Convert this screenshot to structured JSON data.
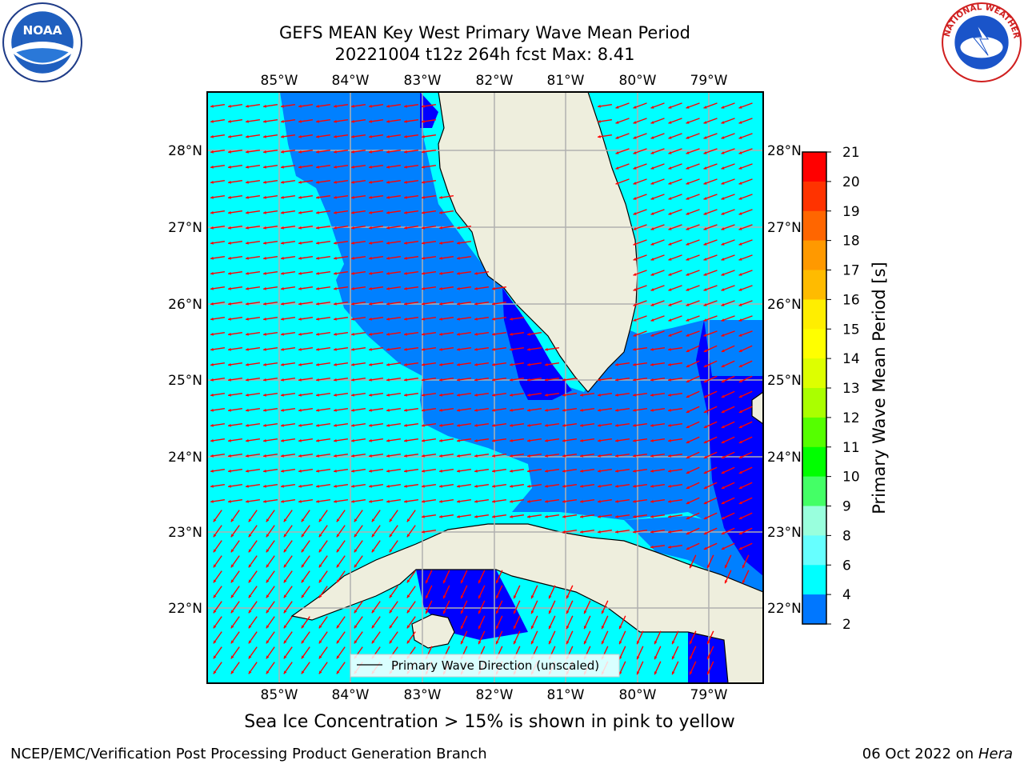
{
  "title": {
    "line1": "GEFS MEAN Key West Primary Wave Mean Period",
    "line2": "20221004 t12z 264h fcst   Max: 8.41"
  },
  "map": {
    "lon_labels": [
      "85°W",
      "84°W",
      "83°W",
      "82°W",
      "81°W",
      "80°W",
      "79°W"
    ],
    "lat_labels": [
      "28°N",
      "27°N",
      "26°N",
      "25°N",
      "24°N",
      "23°N",
      "22°N"
    ],
    "legend_text": "Primary Wave Direction (unscaled)",
    "colors": {
      "land": "#eeeedd",
      "ocean_level_6_8": "#00ffff",
      "ocean_level_4_6": "#0080ff",
      "ocean_level_2_4": "#0000ff",
      "arrow": "#ff0000",
      "grid": "#b0b0b0"
    }
  },
  "colorbar": {
    "label": "Primary Wave Mean Period [s]",
    "ticks": [
      "21",
      "20",
      "19",
      "18",
      "17",
      "16",
      "15",
      "14",
      "13",
      "12",
      "11",
      "10",
      "9",
      "8",
      "6",
      "4",
      "2"
    ],
    "colors": [
      "#ff0000",
      "#ff3300",
      "#ff6600",
      "#ff9900",
      "#ffbb00",
      "#ffee00",
      "#ffff00",
      "#ddff00",
      "#aaff00",
      "#55ff00",
      "#00ff00",
      "#44ff66",
      "#99ffdd",
      "#66ffff",
      "#00ffff",
      "#0077ff",
      "#0000ff"
    ]
  },
  "sea_ice_note": "Sea Ice Concentration > 15% is shown in pink to yellow",
  "footer": {
    "left": "NCEP/EMC/Verification Post Processing Product Generation Branch",
    "right_prefix": "06 Oct 2022 on ",
    "right_host": "Hera"
  },
  "logos": {
    "noaa": "NOAA",
    "nws": "NATIONAL WEATHER SERVICE"
  }
}
